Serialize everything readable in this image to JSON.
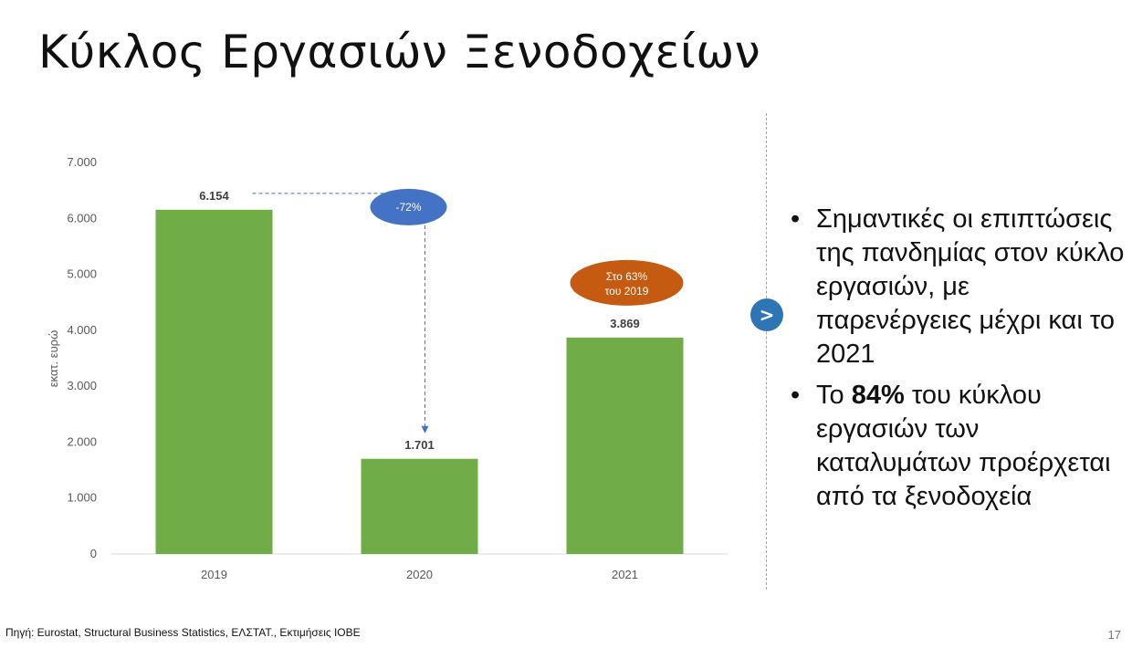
{
  "title": "Κύκλος Εργασιών Ξενοδοχείων",
  "chart_data": {
    "type": "bar",
    "categories": [
      "2019",
      "2020",
      "2021"
    ],
    "values": [
      6154,
      1701,
      3869
    ],
    "value_labels": [
      "6.154",
      "1.701",
      "3.869"
    ],
    "ylabel": "εκατ. ευρώ",
    "ylim": [
      0,
      7000
    ],
    "yticks": [
      "0",
      "1.000",
      "2.000",
      "3.000",
      "4.000",
      "5.000",
      "6.000",
      "7.000"
    ],
    "grid": false,
    "bar_color": "#70ad47",
    "annotations": [
      {
        "text": "-72%",
        "color": "#4472c4",
        "from_category": "2019",
        "to_category": "2020"
      },
      {
        "text_lines": [
          "Στο 63%",
          "του 2019"
        ],
        "color": "#c55a11",
        "category": "2021"
      }
    ]
  },
  "arrow_icon_label": ">",
  "bullets": [
    {
      "segments": [
        {
          "text": "Σημαντικές οι επιπτώσεις της πανδημίας στον κύκλο εργασιών, με παρενέργειες μέχρι και το 2021",
          "bold": false
        }
      ]
    },
    {
      "segments": [
        {
          "text": "Το ",
          "bold": false
        },
        {
          "text": "84%",
          "bold": true
        },
        {
          "text": " του κύκλου εργασιών των καταλυμάτων προέρχεται από τα ξενοδοχεία",
          "bold": false
        }
      ]
    }
  ],
  "footer": "Πηγή: Eurostat, Structural Business Statistics, ΕΛΣΤΑΤ., Εκτιμήσεις ΙΟΒΕ",
  "page_number": "17"
}
